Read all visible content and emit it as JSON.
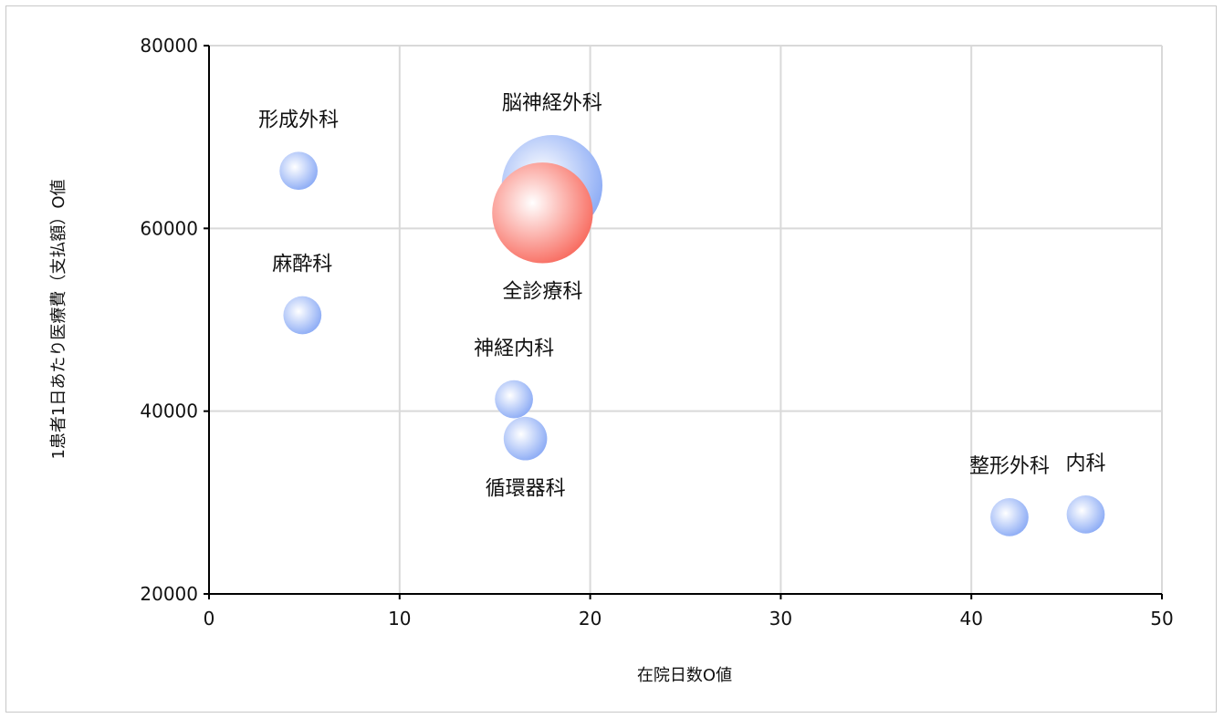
{
  "chart_data": {
    "type": "bubble",
    "title": "",
    "xlabel": "在院日数O値",
    "ylabel": "1患者1日あたり医療費（支払額）O値",
    "xlim": [
      0,
      50
    ],
    "ylim": [
      20000,
      80000
    ],
    "x_ticks": [
      0,
      10,
      20,
      30,
      40,
      50
    ],
    "y_ticks": [
      20000,
      40000,
      60000,
      80000
    ],
    "grid": true,
    "series": [
      {
        "color": "#8aaaf5",
        "points": [
          {
            "label": "形成外科",
            "x": 4.7,
            "y": 66300,
            "size": 1,
            "label_pos": "above"
          },
          {
            "label": "麻酔科",
            "x": 4.9,
            "y": 50500,
            "size": 1,
            "label_pos": "above"
          },
          {
            "label": "脳神経外科",
            "x": 18.0,
            "y": 64700,
            "size": 7,
            "label_pos": "above"
          },
          {
            "label": "神経内科",
            "x": 16.0,
            "y": 41300,
            "size": 1,
            "label_pos": "above"
          },
          {
            "label": "循環器科",
            "x": 16.6,
            "y": 37000,
            "size": 1.3,
            "label_pos": "below"
          },
          {
            "label": "整形外科",
            "x": 42.0,
            "y": 28400,
            "size": 1,
            "label_pos": "above"
          },
          {
            "label": "内科",
            "x": 46.0,
            "y": 28700,
            "size": 1,
            "label_pos": "above"
          }
        ]
      },
      {
        "color": "#f86a5e",
        "points": [
          {
            "label": "全診療科",
            "x": 17.5,
            "y": 61700,
            "size": 7,
            "label_pos": "below"
          }
        ]
      }
    ]
  }
}
